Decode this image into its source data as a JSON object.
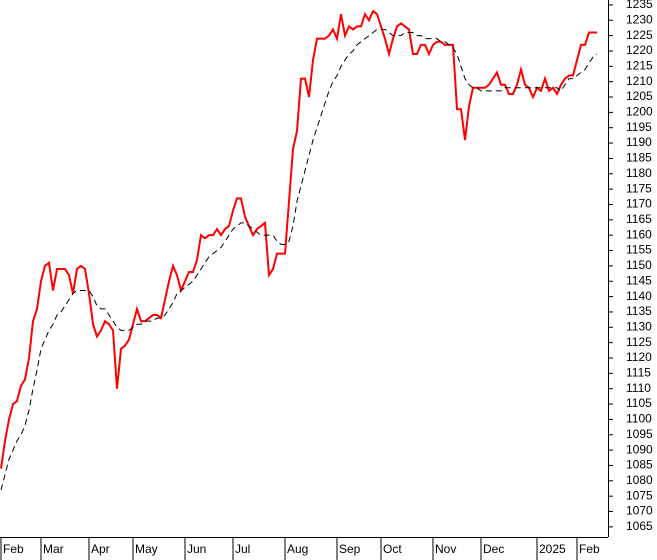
{
  "chart_data": {
    "type": "line",
    "categories": [
      "Feb",
      null,
      null,
      null,
      null,
      null,
      null,
      null,
      null,
      null,
      "Mar",
      null,
      null,
      null,
      null,
      null,
      null,
      null,
      null,
      null,
      null,
      null,
      "Apr",
      null,
      null,
      null,
      null,
      null,
      null,
      null,
      null,
      null,
      null,
      "May",
      null,
      null,
      null,
      null,
      null,
      null,
      null,
      null,
      null,
      null,
      null,
      null,
      "Jun",
      null,
      null,
      null,
      null,
      null,
      null,
      null,
      null,
      null,
      null,
      null,
      "Jul",
      null,
      null,
      null,
      null,
      null,
      null,
      null,
      null,
      null,
      null,
      null,
      null,
      "Aug",
      null,
      null,
      null,
      null,
      null,
      null,
      null,
      null,
      null,
      null,
      null,
      null,
      "Sep",
      null,
      null,
      null,
      null,
      null,
      null,
      null,
      null,
      null,
      null,
      "Oct",
      null,
      null,
      null,
      null,
      null,
      null,
      null,
      null,
      null,
      null,
      null,
      null,
      "Nov",
      null,
      null,
      null,
      null,
      null,
      null,
      null,
      null,
      null,
      null,
      null,
      "Dec",
      null,
      null,
      null,
      null,
      null,
      null,
      null,
      null,
      null,
      null,
      null,
      null,
      null,
      "2025",
      null,
      null,
      null,
      null,
      null,
      null,
      null,
      null,
      null,
      "Feb",
      null,
      null,
      null,
      null,
      null
    ],
    "series": [
      {
        "color": "#ff0000",
        "dash": false,
        "values": [
          1084,
          1093,
          1100,
          1105,
          1106,
          1111,
          1113,
          1120,
          1132,
          1136,
          1145,
          1150,
          1151,
          1142,
          1149,
          1149,
          1149,
          1147,
          1141,
          1149,
          1150,
          1149,
          1141,
          1131,
          1127,
          1129,
          1132,
          1131,
          1129,
          1110,
          1123,
          1124,
          1126,
          1131,
          1136,
          1132,
          1132,
          1133,
          1134,
          1134,
          1133,
          1139,
          1145,
          1150,
          1147,
          1142,
          1145,
          1148,
          1148,
          1152,
          1160,
          1159,
          1160,
          1160,
          1162,
          1160,
          1162,
          1163,
          1168,
          1172,
          1172,
          1166,
          1163,
          1160,
          1162,
          1163,
          1164,
          1147,
          1149,
          1154,
          1154,
          1154,
          1171,
          1188,
          1194,
          1211,
          1211,
          1205,
          1217,
          1224,
          1224,
          1224,
          1225,
          1227,
          1224,
          1232,
          1225,
          1228,
          1227,
          1228,
          1228,
          1232,
          1230,
          1233,
          1232,
          1228,
          1224,
          1219,
          1224,
          1228,
          1229,
          1228,
          1227,
          1219,
          1219,
          1222,
          1222,
          1219,
          1222,
          1223,
          1223,
          1222,
          1222,
          1222,
          1201,
          1201,
          1191,
          1202,
          1208,
          1208,
          1208,
          1208,
          1209,
          1211,
          1213,
          1209,
          1209,
          1206,
          1206,
          1209,
          1214,
          1209,
          1208,
          1205,
          1208,
          1207,
          1211,
          1207,
          1208,
          1206,
          1209,
          1211,
          1212,
          1212,
          1217,
          1222,
          1222,
          1226,
          1226,
          1226
        ]
      },
      {
        "color": "#000000",
        "dash": true,
        "values": [
          1077,
          1082,
          1087,
          1090,
          1093,
          1095,
          1098,
          1103,
          1110,
          1116,
          1123,
          1126,
          1129,
          1131,
          1134,
          1135,
          1137,
          1139,
          1141,
          1142,
          1142,
          1142,
          1142,
          1140,
          1137,
          1136,
          1136,
          1134,
          1132,
          1130,
          1129,
          1129,
          1129,
          1130,
          1131,
          1131,
          1132,
          1132,
          1132,
          1133,
          1133,
          1134,
          1136,
          1138,
          1141,
          1142,
          1143,
          1144,
          1145,
          1147,
          1149,
          1151,
          1153,
          1154,
          1155,
          1156,
          1158,
          1160,
          1162,
          1163,
          1164,
          1164,
          1163,
          1162,
          1161,
          1160,
          1160,
          1160,
          1160,
          1158,
          1157,
          1157,
          1158,
          1163,
          1171,
          1176,
          1181,
          1186,
          1191,
          1195,
          1199,
          1203,
          1207,
          1210,
          1212,
          1215,
          1217,
          1219,
          1220,
          1222,
          1223,
          1224,
          1225,
          1226,
          1227,
          1227,
          1227,
          1226,
          1225,
          1225,
          1225,
          1226,
          1226,
          1226,
          1225,
          1225,
          1224,
          1224,
          1224,
          1224,
          1223,
          1223,
          1222,
          1221,
          1219,
          1215,
          1211,
          1209,
          1208,
          1208,
          1207,
          1207,
          1207,
          1207,
          1207,
          1207,
          1208,
          1208,
          1208,
          1208,
          1208,
          1208,
          1208,
          1208,
          1208,
          1208,
          1208,
          1208,
          1208,
          1208,
          1207,
          1209,
          1211,
          1211,
          1212,
          1213,
          1214,
          1216,
          1218,
          1219
        ]
      }
    ],
    "ylim": [
      1061.7,
      1236.6
    ],
    "yticks": [
      1065,
      1070,
      1075,
      1080,
      1085,
      1090,
      1095,
      1100,
      1105,
      1110,
      1115,
      1120,
      1125,
      1130,
      1135,
      1140,
      1145,
      1150,
      1155,
      1160,
      1165,
      1170,
      1175,
      1180,
      1185,
      1190,
      1195,
      1200,
      1205,
      1210,
      1215,
      1220,
      1225,
      1230,
      1235
    ]
  }
}
